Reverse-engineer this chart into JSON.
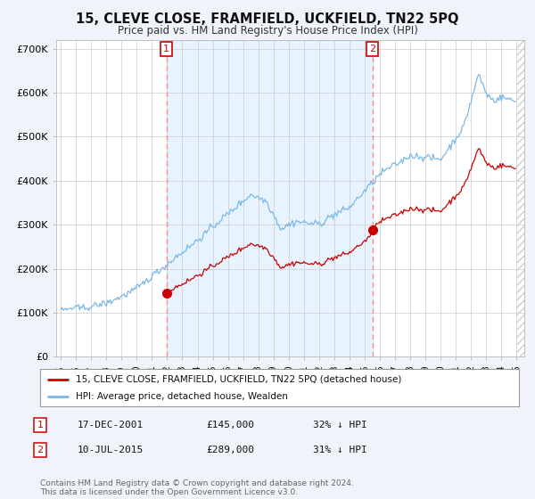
{
  "title": "15, CLEVE CLOSE, FRAMFIELD, UCKFIELD, TN22 5PQ",
  "subtitle": "Price paid vs. HM Land Registry's House Price Index (HPI)",
  "yticks": [
    0,
    100000,
    200000,
    300000,
    400000,
    500000,
    600000,
    700000
  ],
  "ytick_labels": [
    "£0",
    "£100K",
    "£200K",
    "£300K",
    "£400K",
    "£500K",
    "£600K",
    "£700K"
  ],
  "hpi_color": "#7ab8e8",
  "sold_color": "#cc0000",
  "vline_color": "#ff8888",
  "shade_color": "#ddeeff",
  "sale1_year": 2001.958,
  "sale1_price": 145000,
  "sale2_year": 2015.5,
  "sale2_price": 289000,
  "legend_line1": "15, CLEVE CLOSE, FRAMFIELD, UCKFIELD, TN22 5PQ (detached house)",
  "legend_line2": "HPI: Average price, detached house, Wealden",
  "table_row1": [
    "1",
    "17-DEC-2001",
    "£145,000",
    "32% ↓ HPI"
  ],
  "table_row2": [
    "2",
    "10-JUL-2015",
    "£289,000",
    "31% ↓ HPI"
  ],
  "footer": "Contains HM Land Registry data © Crown copyright and database right 2024.\nThis data is licensed under the Open Government Licence v3.0.",
  "bg_color": "#f0f4fa",
  "plot_bg": "#ffffff",
  "title_fontsize": 10.5,
  "subtitle_fontsize": 8.5
}
